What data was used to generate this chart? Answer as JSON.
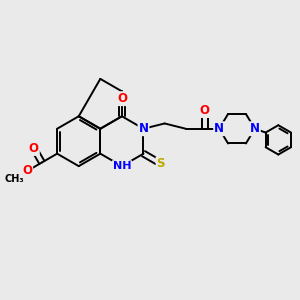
{
  "bg_color": "#eaeaea",
  "bond_color": "#000000",
  "bond_width": 1.4,
  "atom_colors": {
    "N": "#0000ff",
    "O": "#ff0000",
    "S": "#bbaa00",
    "C": "#000000",
    "H": "#000000"
  },
  "font_size": 8.5,
  "fig_size": [
    3.0,
    3.0
  ],
  "dpi": 100
}
